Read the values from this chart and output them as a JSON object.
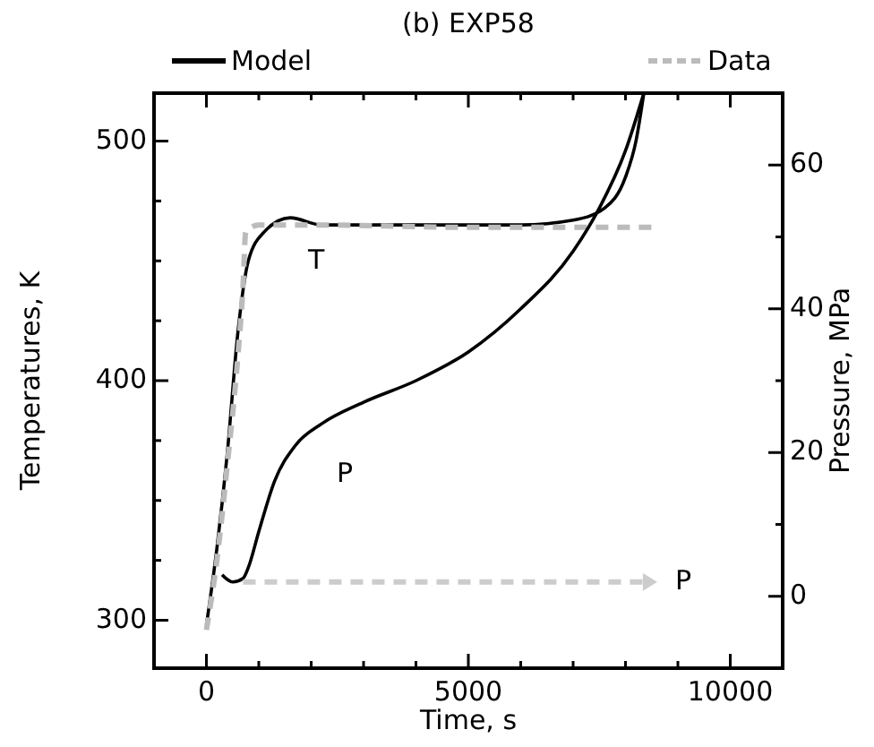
{
  "chart_data": {
    "type": "line",
    "title": "(b) EXP58",
    "xlabel": "Time, s",
    "ylabel": "Temperatures, K",
    "y2label": "Pressure, MPa",
    "xlim": [
      -1000,
      11000
    ],
    "xticks": [
      0,
      {
        "value": 1000,
        "label": null
      },
      {
        "value": 2000,
        "label": null
      },
      {
        "value": 3000,
        "label": null
      },
      {
        "value": 4000,
        "label": null
      },
      5000,
      {
        "value": 6000,
        "label": null
      },
      {
        "value": 7000,
        "label": null
      },
      {
        "value": 8000,
        "label": null
      },
      {
        "value": 9000,
        "label": null
      },
      10000
    ],
    "ylim": [
      280,
      520
    ],
    "yticks": [
      300,
      {
        "value": 325,
        "label": null
      },
      {
        "value": 350,
        "label": null
      },
      {
        "value": 375,
        "label": null
      },
      400,
      {
        "value": 425,
        "label": null
      },
      {
        "value": 450,
        "label": null
      },
      {
        "value": 475,
        "label": null
      },
      500
    ],
    "y2lim": [
      -10,
      70
    ],
    "y2ticks": [
      0,
      {
        "value": 10,
        "label": null
      },
      20,
      {
        "value": 30,
        "label": null
      },
      40,
      {
        "value": 50,
        "label": null
      },
      60
    ],
    "legend": "top",
    "series": [
      {
        "name": "Model",
        "color": "#000000",
        "line_style": "solid",
        "x": [
          0,
          200,
          400,
          600,
          800,
          1100,
          1600,
          2200,
          4000,
          6000,
          7000,
          7600,
          8000,
          8200,
          8350
        ],
        "values": [
          298,
          330,
          370,
          420,
          450,
          462,
          468,
          465,
          465,
          465,
          467,
          472,
          485,
          500,
          520
        ]
      },
      {
        "name": "Data",
        "color": "#bbbbbb",
        "line_style": "dashed",
        "x": [
          0,
          200,
          400,
          600,
          700,
          750,
          1000,
          2000,
          5000,
          8500
        ],
        "values": [
          296,
          325,
          365,
          410,
          440,
          462,
          465,
          465,
          464,
          464
        ]
      },
      {
        "color": "#000000",
        "line_style": "solid",
        "axis": "y2",
        "x": [
          300,
          500,
          700,
          800,
          1000,
          1300,
          1700,
          2200,
          3000,
          4000,
          5000,
          6000,
          7000,
          7500,
          8000,
          8350
        ],
        "values": [
          3,
          2,
          2.5,
          4,
          9,
          16,
          21,
          24,
          27,
          30,
          34,
          40,
          48,
          54,
          62,
          70
        ]
      },
      {
        "color": "#cccccc",
        "line_style": "dashed",
        "axis": "y2",
        "x": [
          700,
          8400
        ],
        "values": [
          2,
          2
        ]
      }
    ],
    "annotations": [
      "T",
      "P",
      "P"
    ]
  }
}
